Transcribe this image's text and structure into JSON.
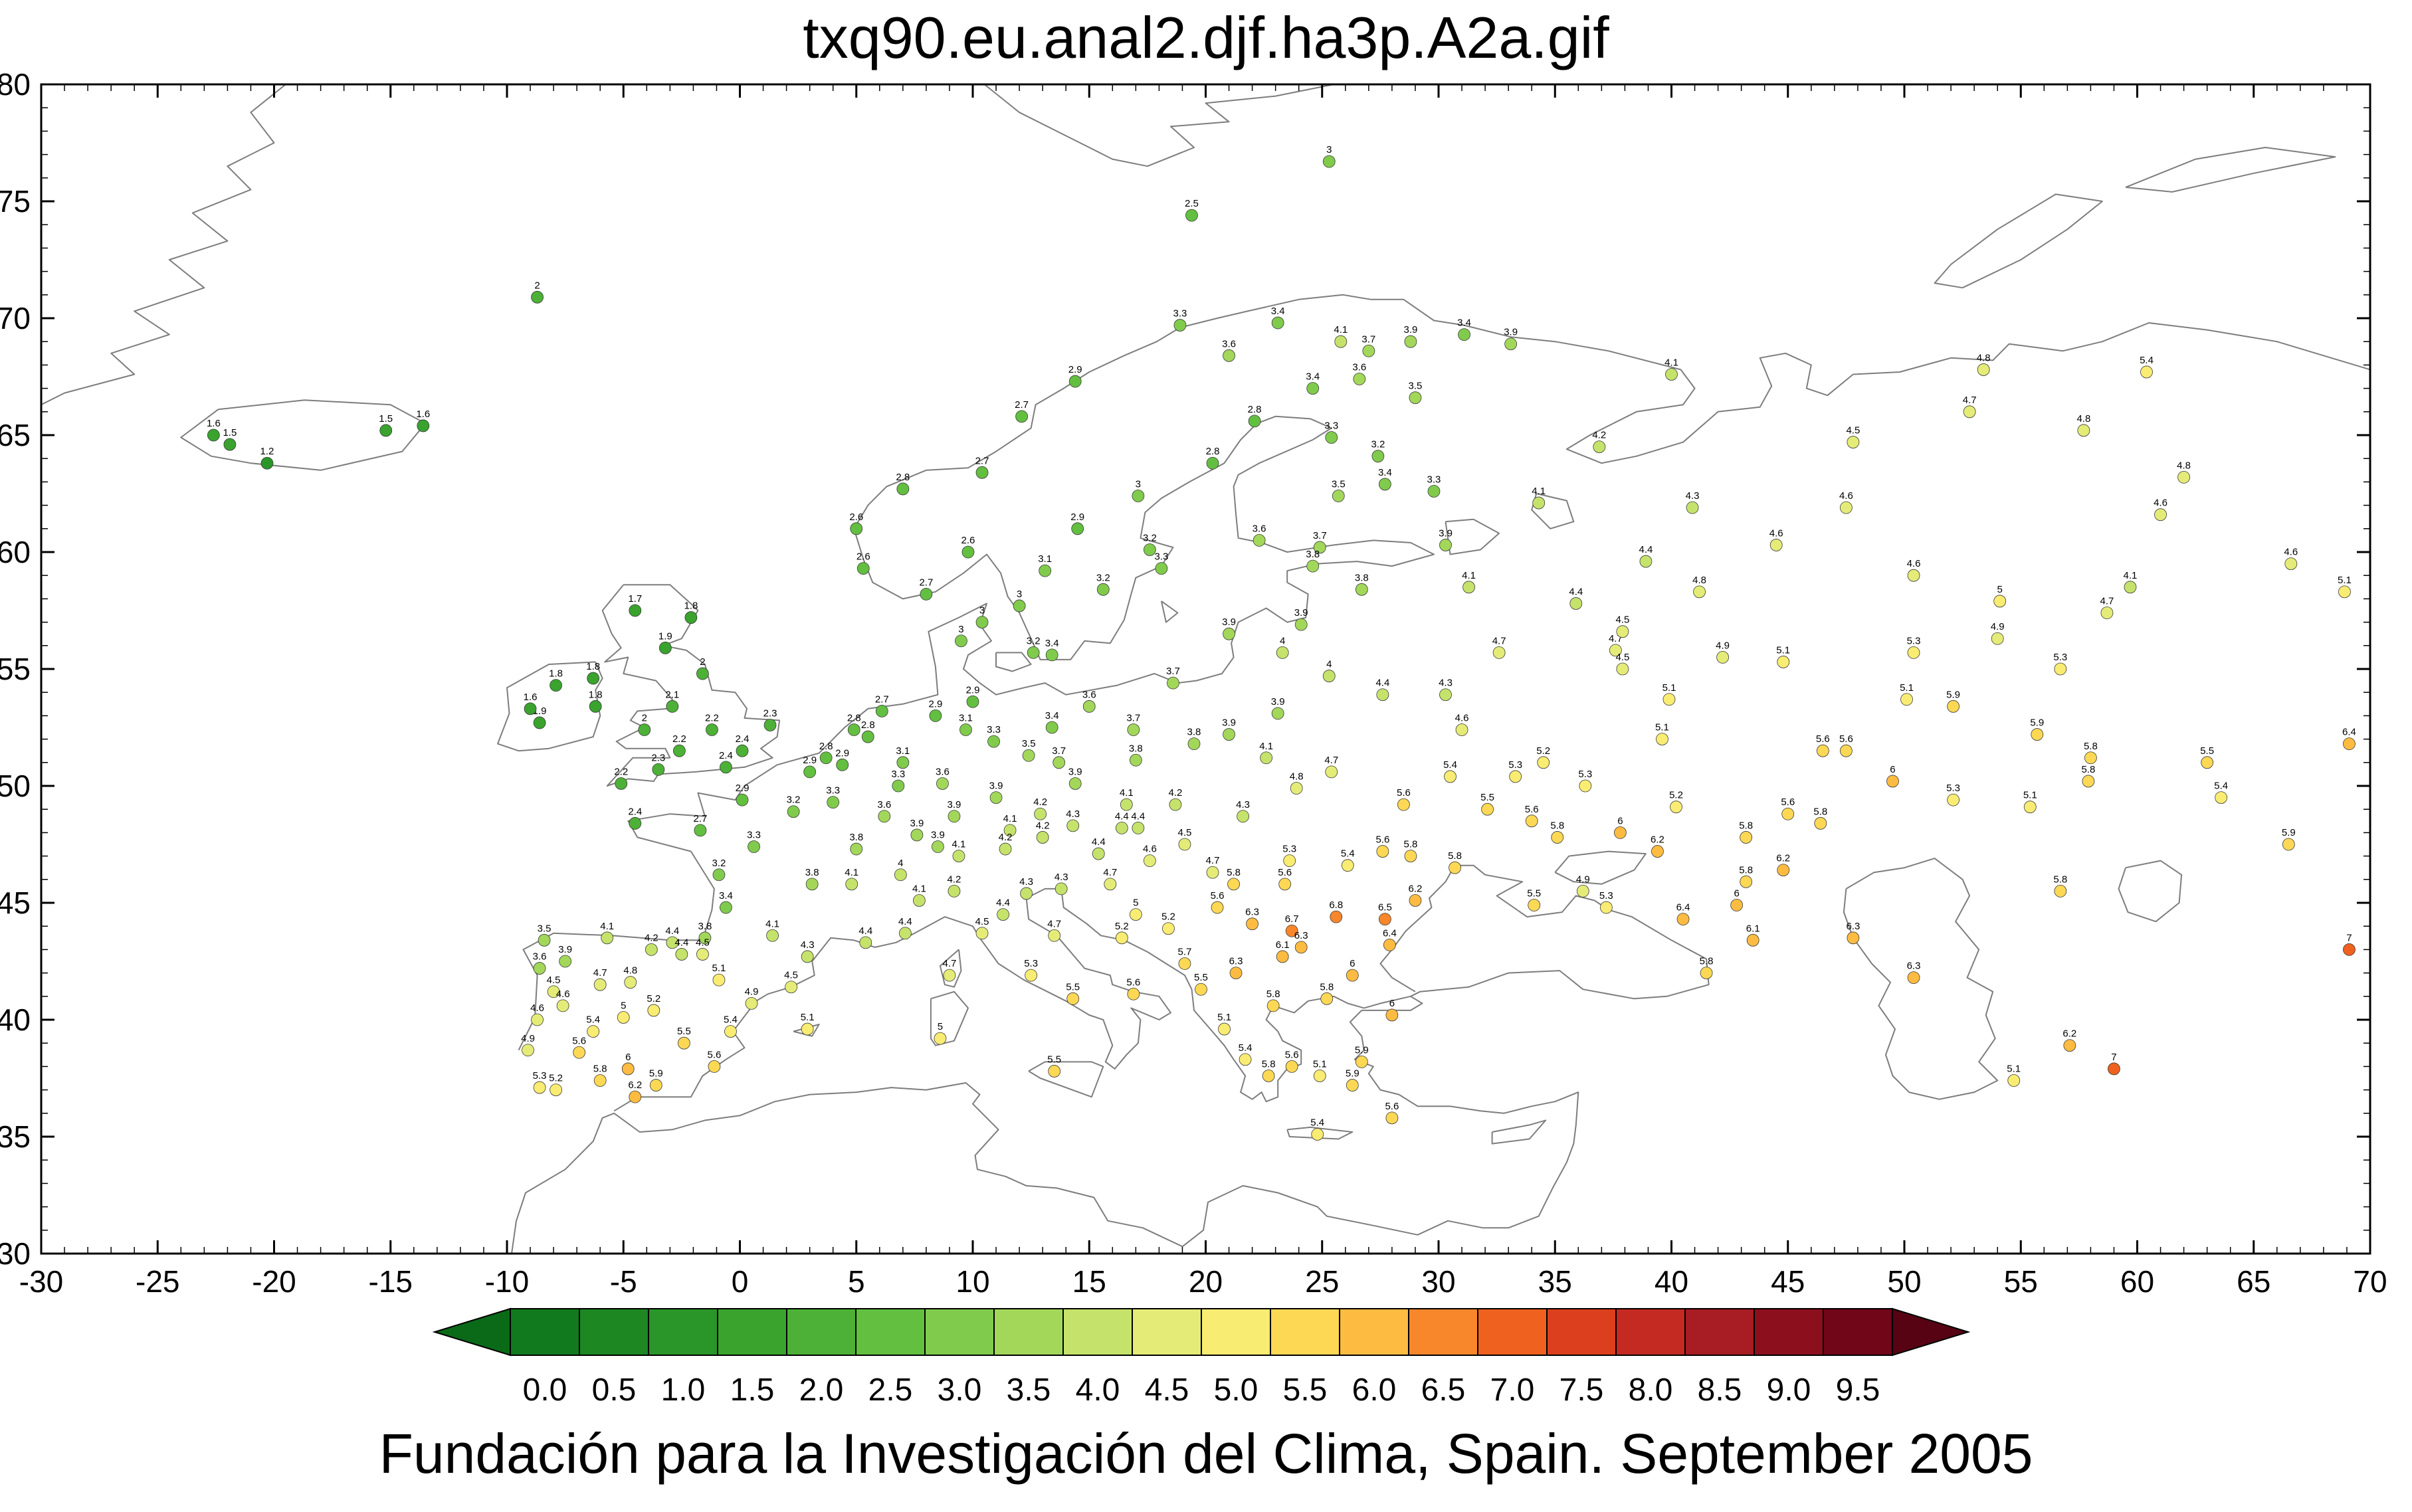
{
  "page": {
    "title": "txq90.eu.anal2.djf.ha3p.A2a.gif",
    "caption": "Fundación para la Investigación del Clima, Spain. September 2005"
  },
  "chart_data": {
    "type": "scatter",
    "subtype": "geographic-station-map",
    "title": "txq90.eu.anal2.djf.ha3p.A2a.gif",
    "xlabel": "",
    "ylabel": "",
    "xlim": [
      -30,
      70
    ],
    "ylim": [
      30,
      80
    ],
    "xticks": [
      -30,
      -25,
      -20,
      -15,
      -10,
      -5,
      0,
      5,
      10,
      15,
      20,
      25,
      30,
      35,
      40,
      45,
      50,
      55,
      60,
      65,
      70
    ],
    "yticks": [
      30,
      35,
      40,
      45,
      50,
      55,
      60,
      65,
      70,
      75,
      80
    ],
    "grid": false,
    "legend_position": "bottom-colorbar",
    "colorbar": {
      "bin_size": 0.5,
      "tick_labels": [
        "0.0",
        "0.5",
        "1.0",
        "1.5",
        "2.0",
        "2.5",
        "3.0",
        "3.5",
        "4.0",
        "4.5",
        "5.0",
        "5.5",
        "6.0",
        "6.5",
        "7.0",
        "7.5",
        "8.0",
        "8.5",
        "9.0",
        "9.5"
      ],
      "colors": [
        "#117a1e",
        "#1d8722",
        "#2a9528",
        "#39a32e",
        "#4cb136",
        "#63bf40",
        "#80cb4c",
        "#a2d75a",
        "#c5e36b",
        "#e4ec77",
        "#f9ec72",
        "#fdd854",
        "#fdbc41",
        "#f8862b",
        "#ef611f",
        "#dc3f1e",
        "#c42a22",
        "#a81c24",
        "#8c0f1e",
        "#700618"
      ],
      "left_arrow_color": "#0a6a18",
      "right_arrow_color": "#570314"
    },
    "points": [
      [
        -22.6,
        65.0,
        1.6
      ],
      [
        -21.9,
        64.6,
        1.5
      ],
      [
        -20.3,
        63.8,
        1.2
      ],
      [
        -15.2,
        65.2,
        1.5
      ],
      [
        -13.6,
        65.4,
        1.6
      ],
      [
        -8.7,
        70.9,
        2.0
      ],
      [
        25.3,
        76.7,
        3.0
      ],
      [
        19.4,
        74.4,
        2.5
      ],
      [
        5.3,
        59.3,
        2.6
      ],
      [
        5.0,
        61.0,
        2.6
      ],
      [
        7.0,
        62.7,
        2.8
      ],
      [
        10.4,
        63.4,
        2.7
      ],
      [
        12.1,
        65.8,
        2.7
      ],
      [
        14.4,
        67.3,
        2.9
      ],
      [
        18.9,
        69.7,
        3.3
      ],
      [
        23.1,
        69.8,
        3.4
      ],
      [
        25.8,
        69.0,
        4.1
      ],
      [
        28.8,
        69.0,
        3.9
      ],
      [
        31.1,
        69.3,
        3.4
      ],
      [
        9.8,
        60.0,
        2.6
      ],
      [
        8.0,
        58.2,
        2.7
      ],
      [
        12.0,
        57.7,
        3.0
      ],
      [
        13.1,
        59.2,
        3.1
      ],
      [
        15.6,
        58.4,
        3.2
      ],
      [
        18.1,
        59.3,
        3.3
      ],
      [
        14.5,
        61.0,
        2.9
      ],
      [
        17.1,
        62.4,
        3.0
      ],
      [
        20.3,
        63.8,
        2.8
      ],
      [
        22.1,
        65.6,
        2.8
      ],
      [
        17.6,
        60.1,
        3.2
      ],
      [
        13.4,
        55.6,
        3.4
      ],
      [
        12.6,
        55.7,
        3.2
      ],
      [
        9.5,
        56.2,
        3.0
      ],
      [
        10.4,
        57.0,
        3.0
      ],
      [
        24.9,
        60.2,
        3.7
      ],
      [
        22.3,
        60.5,
        3.6
      ],
      [
        25.7,
        62.4,
        3.5
      ],
      [
        27.7,
        62.9,
        3.4
      ],
      [
        29.8,
        62.6,
        3.3
      ],
      [
        25.4,
        64.9,
        3.3
      ],
      [
        27.4,
        64.1,
        3.2
      ],
      [
        29.0,
        66.6,
        3.5
      ],
      [
        24.6,
        67.0,
        3.4
      ],
      [
        26.6,
        67.4,
        3.6
      ],
      [
        21.0,
        68.4,
        3.6
      ],
      [
        27.0,
        68.6,
        3.7
      ],
      [
        24.1,
        56.9,
        3.9
      ],
      [
        25.3,
        54.7,
        4.0
      ],
      [
        23.3,
        55.7,
        4.0
      ],
      [
        24.6,
        59.4,
        3.8
      ],
      [
        26.7,
        58.4,
        3.8
      ],
      [
        21.0,
        56.5,
        3.9
      ],
      [
        -6.3,
        54.6,
        1.8
      ],
      [
        -8.6,
        52.7,
        1.9
      ],
      [
        -6.2,
        53.4,
        1.8
      ],
      [
        -9.0,
        53.3,
        1.6
      ],
      [
        -7.9,
        54.3,
        1.8
      ],
      [
        -4.5,
        57.5,
        1.7
      ],
      [
        -2.1,
        57.2,
        1.8
      ],
      [
        -3.2,
        55.9,
        1.9
      ],
      [
        -1.6,
        54.8,
        2.0
      ],
      [
        -2.9,
        53.4,
        2.1
      ],
      [
        -1.2,
        52.4,
        2.2
      ],
      [
        0.1,
        51.5,
        2.4
      ],
      [
        -3.5,
        50.7,
        2.3
      ],
      [
        -5.1,
        50.1,
        2.2
      ],
      [
        -0.6,
        50.8,
        2.4
      ],
      [
        1.3,
        52.6,
        2.3
      ],
      [
        -4.1,
        52.4,
        2.0
      ],
      [
        -2.6,
        51.5,
        2.2
      ],
      [
        -4.5,
        48.4,
        2.4
      ],
      [
        -1.7,
        48.1,
        2.7
      ],
      [
        -0.6,
        44.8,
        3.4
      ],
      [
        -1.5,
        43.5,
        3.8
      ],
      [
        3.1,
        45.8,
        3.8
      ],
      [
        1.4,
        43.6,
        4.1
      ],
      [
        5.4,
        43.3,
        4.4
      ],
      [
        7.1,
        43.7,
        4.4
      ],
      [
        4.8,
        45.8,
        4.1
      ],
      [
        2.3,
        48.9,
        3.2
      ],
      [
        0.1,
        49.4,
        2.9
      ],
      [
        4.0,
        49.3,
        3.3
      ],
      [
        6.2,
        48.7,
        3.6
      ],
      [
        -0.9,
        46.2,
        3.2
      ],
      [
        5.0,
        47.3,
        3.8
      ],
      [
        3.0,
        50.6,
        2.9
      ],
      [
        0.6,
        47.4,
        3.3
      ],
      [
        2.9,
        42.7,
        4.3
      ],
      [
        4.4,
        50.9,
        2.9
      ],
      [
        5.5,
        52.1,
        2.8
      ],
      [
        3.7,
        51.2,
        2.8
      ],
      [
        6.1,
        53.2,
        2.7
      ],
      [
        4.9,
        52.4,
        2.8
      ],
      [
        7.0,
        51.0,
        3.1
      ],
      [
        6.8,
        50.0,
        3.3
      ],
      [
        8.7,
        50.1,
        3.6
      ],
      [
        9.2,
        48.7,
        3.9
      ],
      [
        11.6,
        48.1,
        4.1
      ],
      [
        12.9,
        48.8,
        4.2
      ],
      [
        8.4,
        53.0,
        2.9
      ],
      [
        10.0,
        53.6,
        2.9
      ],
      [
        13.4,
        52.5,
        3.4
      ],
      [
        12.4,
        51.3,
        3.5
      ],
      [
        11.0,
        49.5,
        3.9
      ],
      [
        9.7,
        52.4,
        3.1
      ],
      [
        7.6,
        47.9,
        3.9
      ],
      [
        13.7,
        51.0,
        3.7
      ],
      [
        10.9,
        51.9,
        3.3
      ],
      [
        8.5,
        47.4,
        3.9
      ],
      [
        6.9,
        46.2,
        4.0
      ],
      [
        9.4,
        47.0,
        4.1
      ],
      [
        11.4,
        47.3,
        4.2
      ],
      [
        13.0,
        47.8,
        4.2
      ],
      [
        14.3,
        48.3,
        4.3
      ],
      [
        16.4,
        48.2,
        4.4
      ],
      [
        15.4,
        47.1,
        4.4
      ],
      [
        17.0,
        51.1,
        3.8
      ],
      [
        16.9,
        52.4,
        3.7
      ],
      [
        18.6,
        54.4,
        3.7
      ],
      [
        21.0,
        52.2,
        3.9
      ],
      [
        19.5,
        51.8,
        3.8
      ],
      [
        22.6,
        51.2,
        4.1
      ],
      [
        15.0,
        53.4,
        3.6
      ],
      [
        23.1,
        53.1,
        3.9
      ],
      [
        14.4,
        50.1,
        3.9
      ],
      [
        16.6,
        49.2,
        4.1
      ],
      [
        17.1,
        48.2,
        4.4
      ],
      [
        18.7,
        49.2,
        4.2
      ],
      [
        19.1,
        47.5,
        4.5
      ],
      [
        20.3,
        46.3,
        4.7
      ],
      [
        17.6,
        46.8,
        4.6
      ],
      [
        21.6,
        48.7,
        4.3
      ],
      [
        7.7,
        45.1,
        4.1
      ],
      [
        9.2,
        45.5,
        4.2
      ],
      [
        11.3,
        44.5,
        4.4
      ],
      [
        12.3,
        45.4,
        4.3
      ],
      [
        13.8,
        45.6,
        4.3
      ],
      [
        12.5,
        41.9,
        5.3
      ],
      [
        14.3,
        40.9,
        5.5
      ],
      [
        16.9,
        41.1,
        5.6
      ],
      [
        8.6,
        39.2,
        5.0
      ],
      [
        10.4,
        43.7,
        4.5
      ],
      [
        13.5,
        43.6,
        4.7
      ],
      [
        13.5,
        37.8,
        5.5
      ],
      [
        9.0,
        41.9,
        4.7
      ],
      [
        2.9,
        39.6,
        5.1
      ],
      [
        -8.4,
        43.4,
        3.5
      ],
      [
        -8.6,
        42.2,
        3.6
      ],
      [
        -5.7,
        43.5,
        4.1
      ],
      [
        -2.9,
        43.3,
        4.4
      ],
      [
        -8.0,
        41.2,
        4.5
      ],
      [
        -9.1,
        38.7,
        4.9
      ],
      [
        -7.9,
        37.0,
        5.2
      ],
      [
        -6.0,
        37.4,
        5.8
      ],
      [
        -4.5,
        36.7,
        6.2
      ],
      [
        -5.0,
        40.1,
        5.0
      ],
      [
        -3.7,
        40.4,
        5.2
      ],
      [
        -0.4,
        39.5,
        5.4
      ],
      [
        2.2,
        41.4,
        4.5
      ],
      [
        -0.9,
        41.7,
        5.1
      ],
      [
        -4.7,
        41.6,
        4.8
      ],
      [
        -2.5,
        42.8,
        4.4
      ],
      [
        -1.1,
        38.0,
        5.6
      ],
      [
        -4.8,
        37.9,
        6.0
      ],
      [
        -6.3,
        39.5,
        5.4
      ],
      [
        -7.6,
        40.6,
        4.6
      ],
      [
        -3.6,
        37.2,
        5.9
      ],
      [
        -8.7,
        40.0,
        4.6
      ],
      [
        -6.9,
        38.6,
        5.6
      ],
      [
        -3.8,
        43.0,
        4.2
      ],
      [
        0.5,
        40.7,
        4.9
      ],
      [
        -2.4,
        39.0,
        5.5
      ],
      [
        -6.0,
        41.5,
        4.7
      ],
      [
        -7.5,
        42.5,
        3.9
      ],
      [
        -1.6,
        42.8,
        4.5
      ],
      [
        -8.6,
        37.1,
        5.3
      ],
      [
        20.5,
        44.8,
        5.6
      ],
      [
        21.3,
        42.0,
        6.3
      ],
      [
        23.3,
        42.7,
        6.1
      ],
      [
        22.9,
        40.6,
        5.8
      ],
      [
        23.7,
        38.0,
        5.6
      ],
      [
        21.7,
        38.3,
        5.4
      ],
      [
        20.8,
        39.6,
        5.1
      ],
      [
        19.8,
        41.3,
        5.5
      ],
      [
        19.1,
        42.4,
        5.7
      ],
      [
        18.4,
        43.9,
        5.2
      ],
      [
        17.0,
        44.5,
        5.0
      ],
      [
        15.9,
        45.8,
        4.7
      ],
      [
        16.4,
        43.5,
        5.2
      ],
      [
        26.3,
        41.9,
        6.0
      ],
      [
        24.8,
        35.1,
        5.4
      ],
      [
        28.0,
        35.8,
        5.6
      ],
      [
        22.7,
        37.6,
        5.8
      ],
      [
        24.9,
        37.6,
        5.1
      ],
      [
        26.3,
        37.2,
        5.9
      ],
      [
        25.2,
        40.9,
        5.8
      ],
      [
        23.4,
        45.8,
        5.6
      ],
      [
        22.0,
        44.1,
        6.3
      ],
      [
        23.7,
        43.8,
        6.7
      ],
      [
        25.6,
        44.4,
        6.8
      ],
      [
        27.7,
        44.3,
        6.5
      ],
      [
        29.0,
        45.1,
        6.2
      ],
      [
        23.6,
        46.8,
        5.3
      ],
      [
        27.6,
        47.2,
        5.6
      ],
      [
        28.8,
        47.0,
        5.8
      ],
      [
        27.9,
        43.2,
        6.4
      ],
      [
        24.1,
        43.1,
        6.3
      ],
      [
        21.2,
        45.8,
        5.8
      ],
      [
        26.1,
        46.6,
        5.4
      ],
      [
        26.7,
        38.2,
        5.9
      ],
      [
        28.0,
        40.2,
        6.0
      ],
      [
        23.9,
        49.9,
        4.8
      ],
      [
        25.4,
        50.6,
        4.7
      ],
      [
        28.5,
        49.2,
        5.6
      ],
      [
        30.7,
        46.5,
        5.8
      ],
      [
        32.1,
        49.0,
        5.5
      ],
      [
        34.0,
        48.5,
        5.6
      ],
      [
        35.1,
        47.8,
        5.8
      ],
      [
        36.3,
        50.0,
        5.3
      ],
      [
        37.8,
        48.0,
        6.0
      ],
      [
        27.6,
        53.9,
        4.4
      ],
      [
        30.3,
        53.9,
        4.3
      ],
      [
        31.0,
        52.4,
        4.6
      ],
      [
        30.5,
        50.4,
        5.4
      ],
      [
        33.3,
        50.4,
        5.3
      ],
      [
        36.2,
        45.5,
        4.9
      ],
      [
        37.2,
        44.8,
        5.3
      ],
      [
        34.1,
        44.9,
        5.5
      ],
      [
        37.6,
        55.8,
        4.7
      ],
      [
        32.6,
        55.7,
        4.7
      ],
      [
        37.9,
        55.0,
        4.5
      ],
      [
        42.2,
        55.5,
        4.9
      ],
      [
        39.9,
        53.7,
        5.1
      ],
      [
        39.6,
        52.0,
        5.1
      ],
      [
        34.5,
        51.0,
        5.2
      ],
      [
        40.2,
        49.1,
        5.2
      ],
      [
        43.2,
        47.8,
        5.8
      ],
      [
        44.8,
        46.4,
        6.2
      ],
      [
        43.2,
        45.9,
        5.8
      ],
      [
        52.1,
        49.4,
        5.3
      ],
      [
        55.4,
        49.1,
        5.1
      ],
      [
        57.9,
        50.2,
        5.8
      ],
      [
        46.5,
        51.5,
        5.6
      ],
      [
        47.5,
        51.5,
        5.6
      ],
      [
        49.5,
        50.2,
        6.0
      ],
      [
        52.1,
        53.4,
        5.9
      ],
      [
        55.7,
        52.2,
        5.9
      ],
      [
        58.0,
        51.2,
        5.8
      ],
      [
        50.4,
        55.7,
        5.3
      ],
      [
        56.7,
        55.0,
        5.3
      ],
      [
        50.1,
        53.7,
        5.1
      ],
      [
        44.8,
        55.3,
        5.1
      ],
      [
        54.0,
        56.3,
        4.9
      ],
      [
        54.1,
        57.9,
        5.0
      ],
      [
        59.7,
        58.5,
        4.1
      ],
      [
        58.7,
        57.4,
        4.7
      ],
      [
        61.0,
        61.6,
        4.6
      ],
      [
        47.5,
        61.9,
        4.6
      ],
      [
        50.4,
        59.0,
        4.6
      ],
      [
        66.6,
        59.5,
        4.6
      ],
      [
        68.9,
        58.3,
        5.1
      ],
      [
        62.0,
        63.2,
        4.8
      ],
      [
        57.7,
        65.2,
        4.8
      ],
      [
        52.8,
        66.0,
        4.7
      ],
      [
        53.4,
        67.8,
        4.8
      ],
      [
        60.4,
        67.7,
        5.4
      ],
      [
        47.8,
        64.7,
        4.5
      ],
      [
        40.9,
        61.9,
        4.3
      ],
      [
        44.5,
        60.3,
        4.6
      ],
      [
        38.9,
        59.6,
        4.4
      ],
      [
        30.3,
        60.3,
        3.9
      ],
      [
        34.3,
        62.1,
        4.1
      ],
      [
        36.9,
        64.5,
        4.2
      ],
      [
        33.1,
        68.9,
        3.9
      ],
      [
        40.0,
        67.6,
        4.1
      ],
      [
        37.9,
        56.6,
        4.5
      ],
      [
        41.2,
        58.3,
        4.8
      ],
      [
        31.3,
        58.5,
        4.1
      ],
      [
        35.9,
        57.8,
        4.4
      ],
      [
        69.1,
        51.8,
        6.4
      ],
      [
        69.1,
        43.0,
        7.0
      ],
      [
        59.0,
        37.9,
        7.0
      ],
      [
        57.1,
        38.9,
        6.2
      ],
      [
        54.7,
        37.4,
        5.1
      ],
      [
        50.4,
        41.8,
        6.3
      ],
      [
        47.8,
        43.5,
        6.3
      ],
      [
        41.5,
        42.0,
        5.8
      ],
      [
        43.5,
        43.4,
        6.1
      ],
      [
        63.6,
        49.5,
        5.4
      ],
      [
        63.0,
        51.0,
        5.5
      ],
      [
        66.5,
        47.5,
        5.9
      ],
      [
        56.7,
        45.5,
        5.8
      ],
      [
        40.5,
        44.3,
        6.4
      ],
      [
        42.8,
        44.9,
        6.0
      ],
      [
        39.4,
        47.2,
        6.2
      ],
      [
        45.0,
        48.8,
        5.6
      ],
      [
        46.4,
        48.4,
        5.8
      ]
    ]
  }
}
